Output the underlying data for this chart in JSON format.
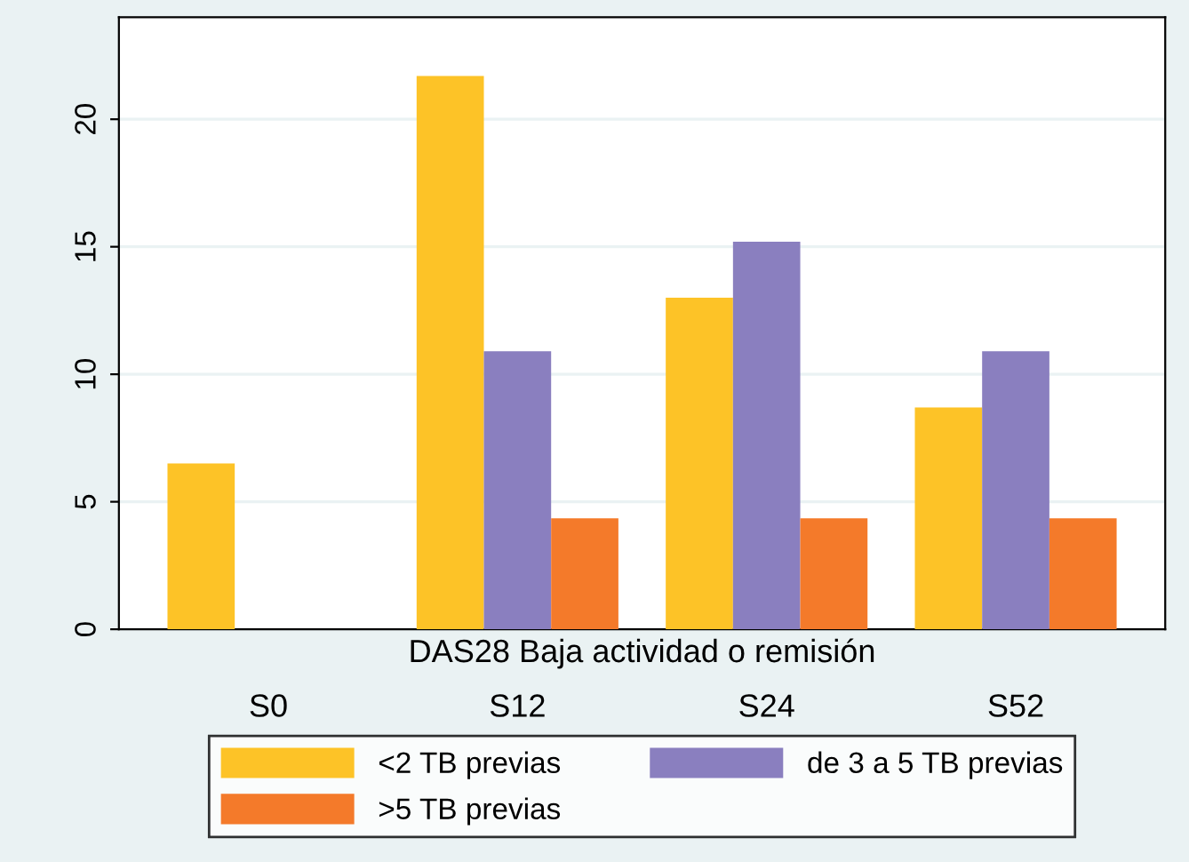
{
  "chart_data": {
    "type": "bar",
    "xlabel": "DAS28 Baja actividad o remisión",
    "categories": [
      "S0",
      "S12",
      "S24",
      "S52"
    ],
    "series": [
      {
        "name": "<2 TB previas",
        "color": "#fdc327",
        "values": [
          6.5,
          21.7,
          13.0,
          8.7
        ]
      },
      {
        "name": "de 3 a 5 TB previas",
        "color": "#8a7fbf",
        "values": [
          0,
          10.9,
          15.2,
          10.9
        ]
      },
      {
        "name": ">5 TB previas",
        "color": "#f47a2a",
        "values": [
          0,
          4.35,
          4.35,
          4.35
        ]
      }
    ],
    "ylim": [
      0,
      24
    ],
    "yticks": [
      0,
      5,
      10,
      15,
      20
    ],
    "grid": "y",
    "legend": "bottom"
  }
}
